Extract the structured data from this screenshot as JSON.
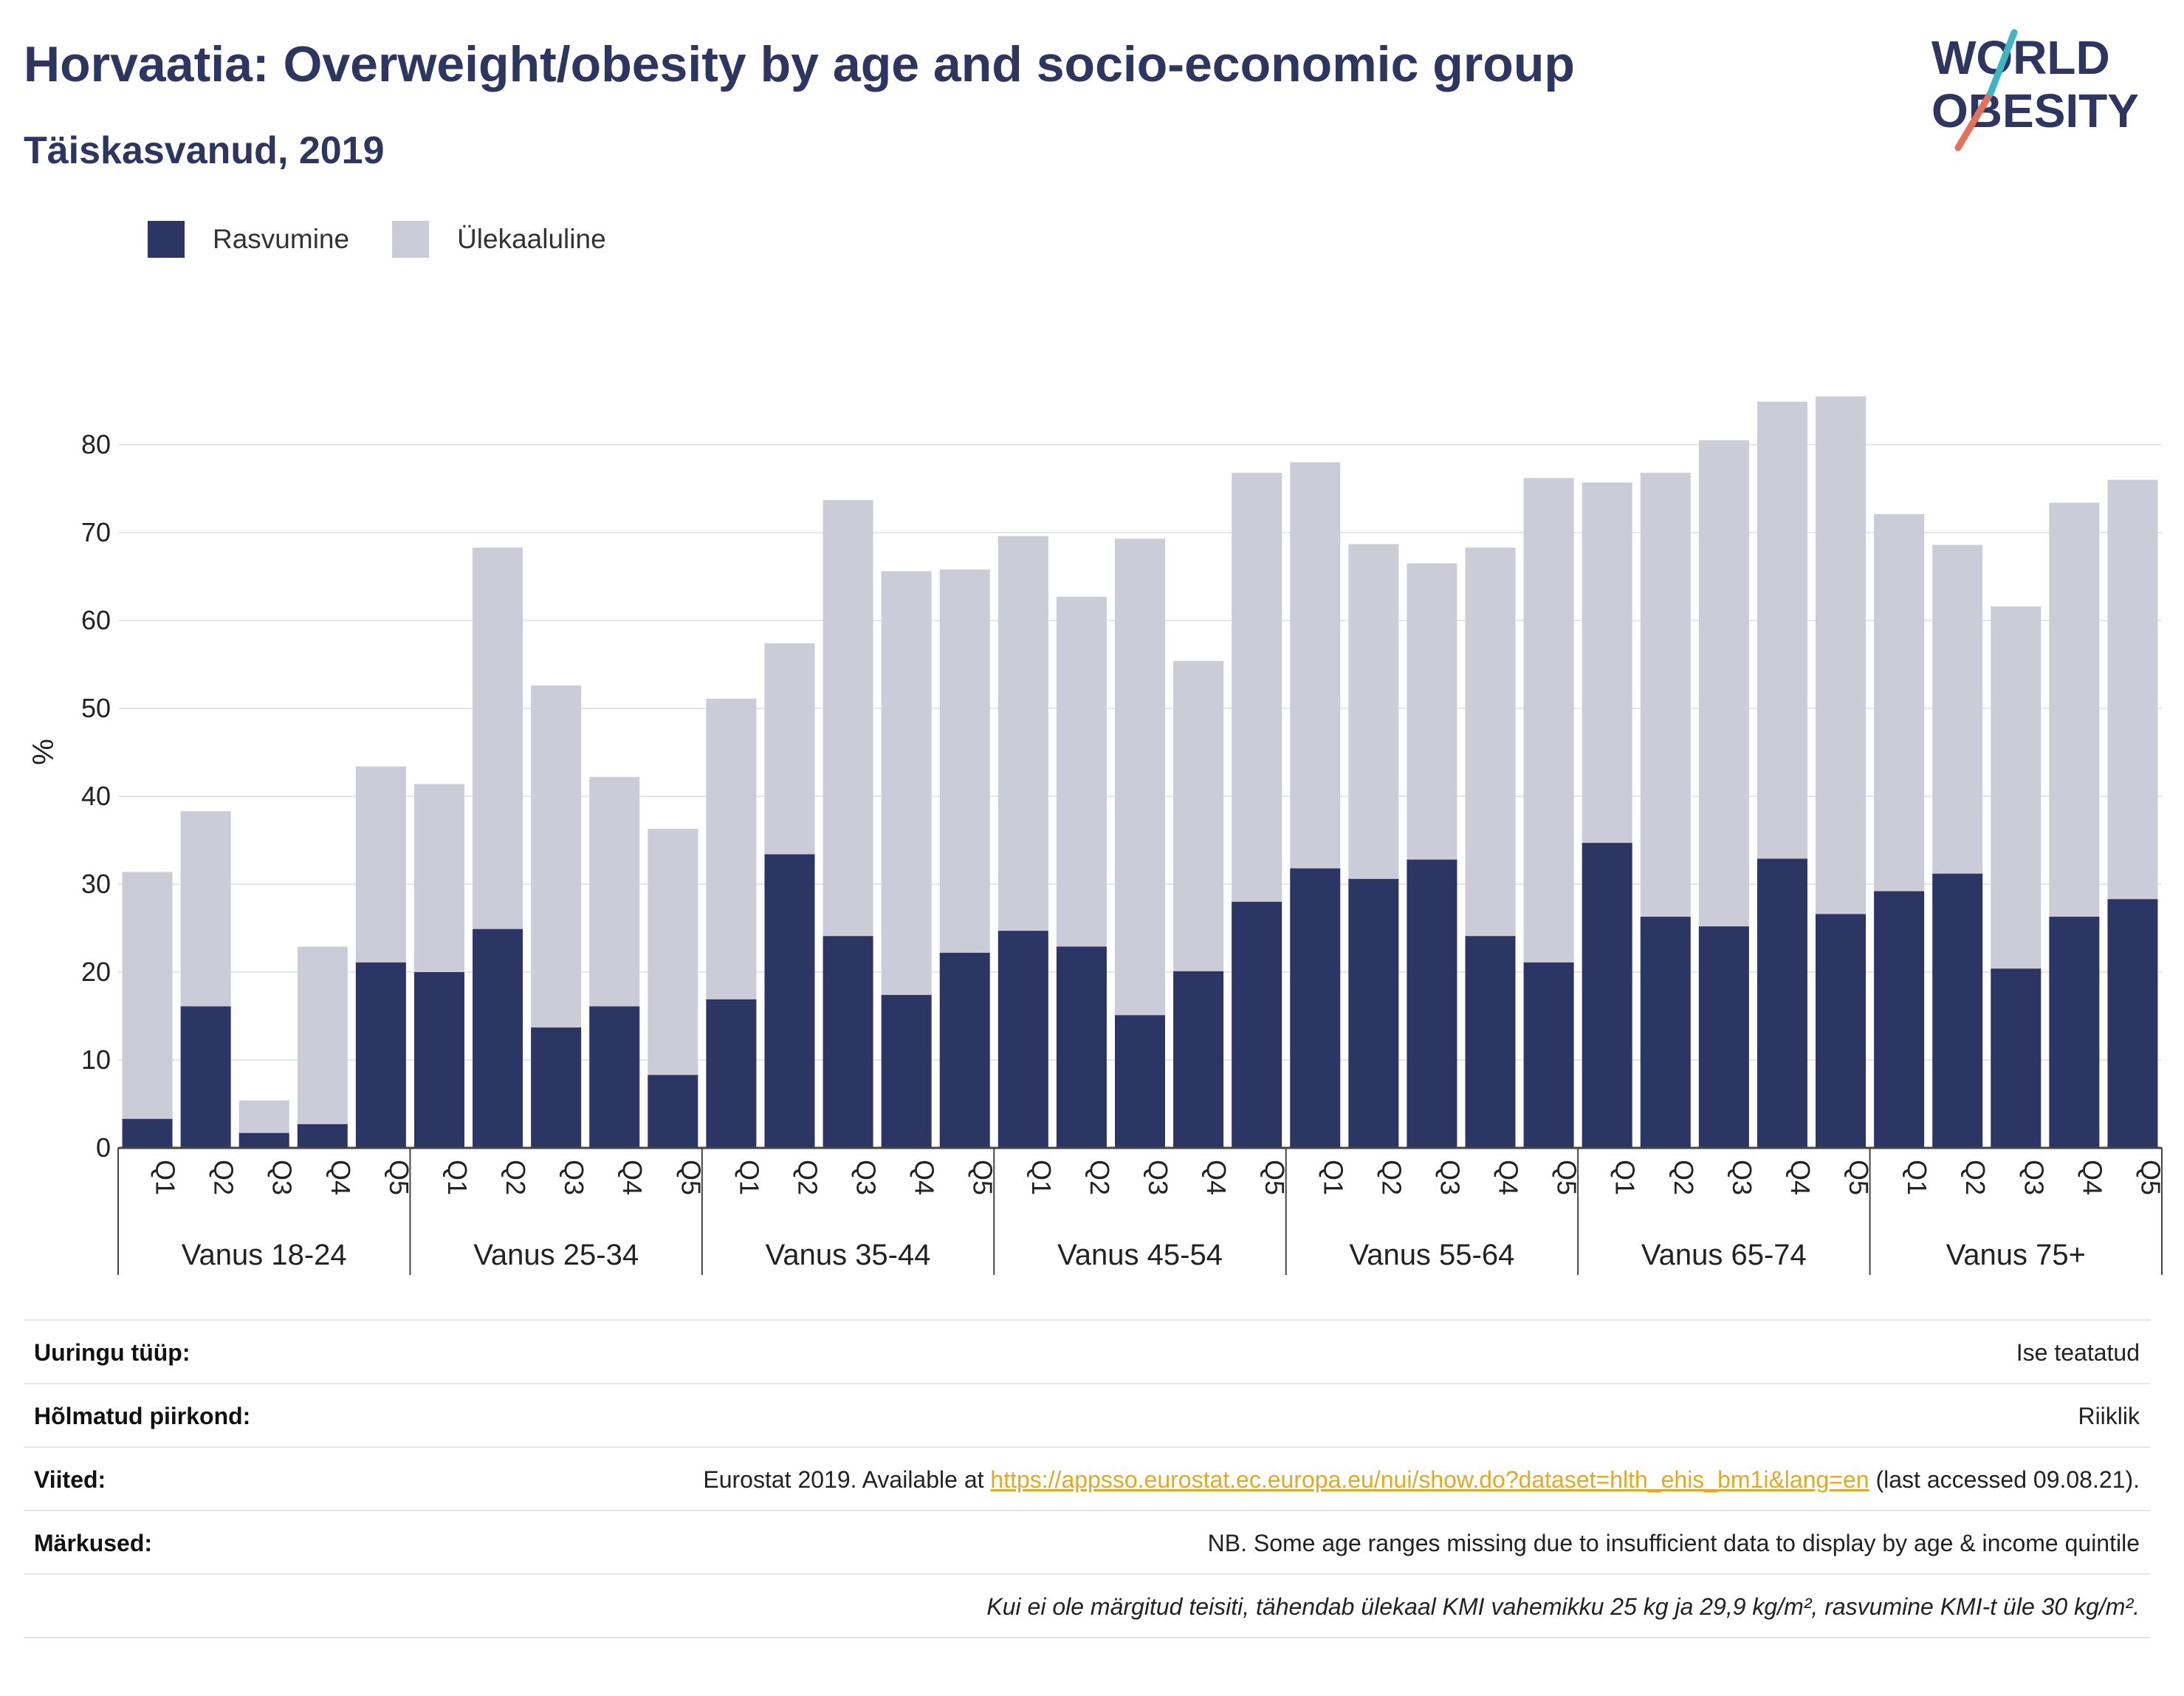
{
  "header": {
    "title": "Horvaatia: Overweight/obesity by age and socio-economic group",
    "subtitle": "Täiskasvanud, 2019"
  },
  "logo": {
    "line1": "WORLD",
    "line2": "OBESITY"
  },
  "legend": [
    {
      "label": "Rasvumine",
      "color": "#2b3665"
    },
    {
      "label": "Ülekaaluline",
      "color": "#cbccd8"
    }
  ],
  "chart_data": {
    "type": "bar",
    "stacked": true,
    "ylabel": "%",
    "ylim": [
      0,
      90
    ],
    "yticks": [
      0,
      10,
      20,
      30,
      40,
      50,
      60,
      70,
      80
    ],
    "grid": true,
    "legend_position": "top-left",
    "quintiles": [
      "Q1",
      "Q2",
      "Q3",
      "Q4",
      "Q5"
    ],
    "groups": [
      {
        "label": "Vanus 18-24",
        "obesity": [
          3.3,
          16.1,
          1.7,
          2.7,
          21.1
        ],
        "total": [
          31.4,
          38.3,
          5.4,
          22.9,
          43.4
        ]
      },
      {
        "label": "Vanus 25-34",
        "obesity": [
          20.0,
          24.9,
          13.7,
          16.1,
          8.3
        ],
        "total": [
          41.4,
          68.3,
          52.6,
          42.2,
          36.3
        ]
      },
      {
        "label": "Vanus 35-44",
        "obesity": [
          16.9,
          33.4,
          24.1,
          17.4,
          22.2
        ],
        "total": [
          51.1,
          57.4,
          73.7,
          65.6,
          65.8
        ]
      },
      {
        "label": "Vanus 45-54",
        "obesity": [
          24.7,
          22.9,
          15.1,
          20.1,
          28.0
        ],
        "total": [
          69.6,
          62.7,
          69.3,
          55.4,
          76.8
        ]
      },
      {
        "label": "Vanus 55-64",
        "obesity": [
          31.8,
          30.6,
          32.8,
          24.1,
          21.1
        ],
        "total": [
          78.0,
          68.7,
          66.5,
          68.3,
          76.2
        ]
      },
      {
        "label": "Vanus 65-74",
        "obesity": [
          34.7,
          26.3,
          25.2,
          32.9,
          26.6
        ],
        "total": [
          75.7,
          76.8,
          80.5,
          84.9,
          85.5
        ]
      },
      {
        "label": "Vanus 75+",
        "obesity": [
          29.2,
          31.2,
          20.4,
          26.3,
          28.3
        ],
        "total": [
          72.1,
          68.6,
          61.6,
          73.4,
          76.0
        ]
      }
    ],
    "series": [
      {
        "name": "Rasvumine",
        "color": "#2b3665"
      },
      {
        "name": "Ülekaaluline",
        "color": "#cbccd8"
      }
    ]
  },
  "info": {
    "survey_key": "Uuringu tüüp:",
    "survey_val": "Ise teatatud",
    "region_key": "Hõlmatud piirkond:",
    "region_val": "Riiklik",
    "refs_key": "Viited:",
    "refs_pre": "Eurostat 2019. Available at ",
    "refs_link": "https://appsso.eurostat.ec.europa.eu/nui/show.do?dataset=hlth_ehis_bm1i&lang=en",
    "refs_post": " (last accessed 09.08.21).",
    "notes_key": "Märkused:",
    "notes_val": "NB. Some age ranges missing due to insufficient data to display by age & income quintile",
    "footnote": "Kui ei ole märgitud teisiti, tähendab ülekaal KMI vahemikku 25 kg ja 29,9 kg/m², rasvumine KMI-t üle 30 kg/m²."
  }
}
